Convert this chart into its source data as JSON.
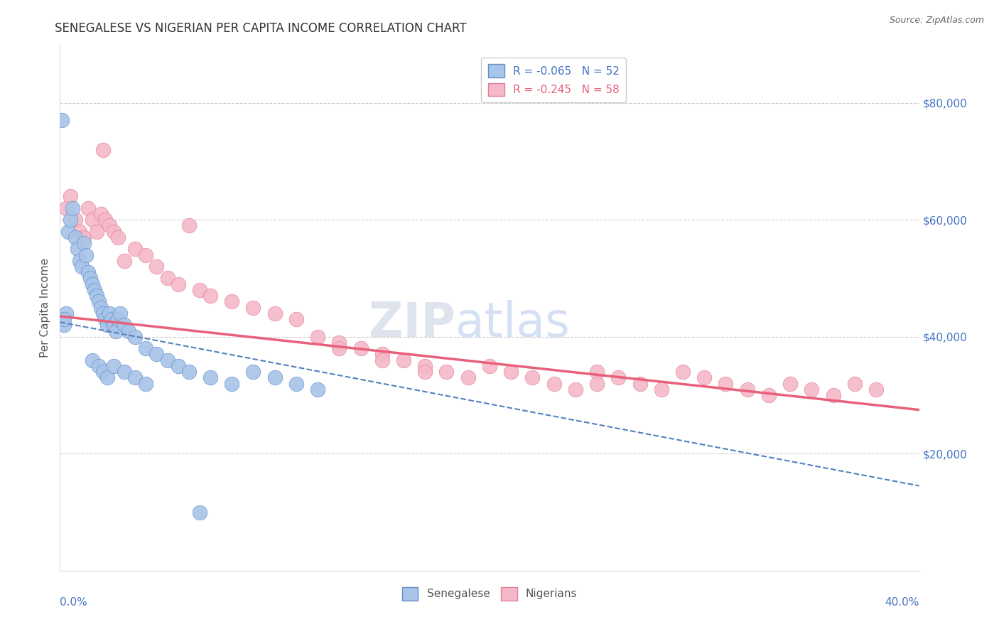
{
  "title": "SENEGALESE VS NIGERIAN PER CAPITA INCOME CORRELATION CHART",
  "source": "Source: ZipAtlas.com",
  "ylabel": "Per Capita Income",
  "blue_color": "#a8c4e8",
  "pink_color": "#f5b8c8",
  "blue_edge_color": "#6090c8",
  "pink_edge_color": "#e08098",
  "blue_line_color": "#5580c0",
  "pink_line_color": "#e8607a",
  "legend_blue_label": "R = -0.065   N = 52",
  "legend_pink_label": "R = -0.245   N = 58",
  "legend_blue_text_color": "#4472c4",
  "legend_pink_text_color": "#e8607a",
  "ytick_color": "#4472c4",
  "source_color": "#666666",
  "title_color": "#333333",
  "watermark_zip_color": "#c8d8ec",
  "watermark_atlas_color": "#b8c8e0",
  "xmin": 0.0,
  "xmax": 0.4,
  "ymin": 0,
  "ymax": 90000,
  "grid_color": "#cccccc",
  "blue_intercept": 42500,
  "blue_slope": -70000,
  "pink_intercept": 43500,
  "pink_slope": -40000,
  "senegalese_x": [
    0.001,
    0.002,
    0.003,
    0.004,
    0.005,
    0.006,
    0.007,
    0.008,
    0.009,
    0.01,
    0.011,
    0.012,
    0.013,
    0.014,
    0.015,
    0.016,
    0.017,
    0.018,
    0.019,
    0.02,
    0.021,
    0.022,
    0.023,
    0.024,
    0.025,
    0.026,
    0.027,
    0.028,
    0.03,
    0.032,
    0.035,
    0.04,
    0.045,
    0.05,
    0.055,
    0.06,
    0.07,
    0.08,
    0.09,
    0.1,
    0.11,
    0.12,
    0.015,
    0.018,
    0.02,
    0.022,
    0.025,
    0.03,
    0.035,
    0.04,
    0.002,
    0.065
  ],
  "senegalese_y": [
    77000,
    42000,
    44000,
    58000,
    60000,
    62000,
    57000,
    55000,
    53000,
    52000,
    56000,
    54000,
    51000,
    50000,
    49000,
    48000,
    47000,
    46000,
    45000,
    44000,
    43000,
    42000,
    44000,
    43000,
    42000,
    41000,
    43000,
    44000,
    42000,
    41000,
    40000,
    38000,
    37000,
    36000,
    35000,
    34000,
    33000,
    32000,
    34000,
    33000,
    32000,
    31000,
    36000,
    35000,
    34000,
    33000,
    35000,
    34000,
    33000,
    32000,
    43000,
    10000
  ],
  "nigerian_x": [
    0.003,
    0.005,
    0.007,
    0.009,
    0.011,
    0.013,
    0.015,
    0.017,
    0.019,
    0.021,
    0.023,
    0.025,
    0.027,
    0.03,
    0.035,
    0.04,
    0.045,
    0.05,
    0.055,
    0.06,
    0.065,
    0.07,
    0.08,
    0.09,
    0.1,
    0.11,
    0.12,
    0.13,
    0.14,
    0.15,
    0.16,
    0.17,
    0.18,
    0.19,
    0.2,
    0.21,
    0.22,
    0.23,
    0.24,
    0.25,
    0.26,
    0.27,
    0.28,
    0.29,
    0.3,
    0.31,
    0.32,
    0.33,
    0.34,
    0.35,
    0.36,
    0.37,
    0.38,
    0.13,
    0.15,
    0.17,
    0.02,
    0.25
  ],
  "nigerian_y": [
    62000,
    64000,
    60000,
    58000,
    57000,
    62000,
    60000,
    58000,
    61000,
    60000,
    59000,
    58000,
    57000,
    53000,
    55000,
    54000,
    52000,
    50000,
    49000,
    59000,
    48000,
    47000,
    46000,
    45000,
    44000,
    43000,
    40000,
    39000,
    38000,
    37000,
    36000,
    35000,
    34000,
    33000,
    35000,
    34000,
    33000,
    32000,
    31000,
    34000,
    33000,
    32000,
    31000,
    34000,
    33000,
    32000,
    31000,
    30000,
    32000,
    31000,
    30000,
    32000,
    31000,
    38000,
    36000,
    34000,
    72000,
    32000
  ]
}
